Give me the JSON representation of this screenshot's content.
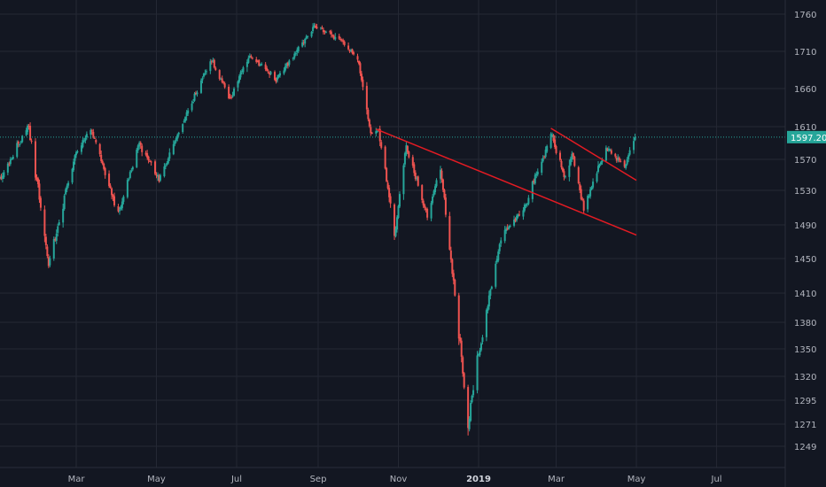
{
  "chart_data": {
    "type": "candlestick",
    "x_ticks": [
      "Mar",
      "May",
      "Jul",
      "Sep",
      "Nov",
      "2019",
      "Mar",
      "May",
      "Jul"
    ],
    "y_ticks": [
      1760,
      1710,
      1660,
      1610,
      1570,
      1530,
      1490,
      1450,
      1410,
      1380,
      1350,
      1320,
      1295,
      1271,
      1249
    ],
    "last_price": "1597.20",
    "colors": {
      "background": "#131722",
      "grid": "#242834",
      "up": "#26a69a",
      "down": "#ef5350",
      "trendline": "#e31b23",
      "price_tag": "#26a69a",
      "axis_text": "#b2b5be"
    },
    "key_points": [
      {
        "date": "2018-01-02",
        "close": 1545
      },
      {
        "date": "2018-01-24",
        "close": 1612
      },
      {
        "date": "2018-02-08",
        "close": 1440
      },
      {
        "date": "2018-02-27",
        "close": 1570
      },
      {
        "date": "2018-03-12",
        "close": 1610
      },
      {
        "date": "2018-04-02",
        "close": 1500
      },
      {
        "date": "2018-04-18",
        "close": 1590
      },
      {
        "date": "2018-05-03",
        "close": 1545
      },
      {
        "date": "2018-06-12",
        "close": 1700
      },
      {
        "date": "2018-06-26",
        "close": 1645
      },
      {
        "date": "2018-07-10",
        "close": 1705
      },
      {
        "date": "2018-07-31",
        "close": 1672
      },
      {
        "date": "2018-08-29",
        "close": 1745
      },
      {
        "date": "2018-09-20",
        "close": 1722
      },
      {
        "date": "2018-10-01",
        "close": 1700
      },
      {
        "date": "2018-10-11",
        "close": 1600
      },
      {
        "date": "2018-10-17",
        "close": 1605
      },
      {
        "date": "2018-10-29",
        "close": 1478
      },
      {
        "date": "2018-11-07",
        "close": 1585
      },
      {
        "date": "2018-11-23",
        "close": 1500
      },
      {
        "date": "2018-12-03",
        "close": 1560
      },
      {
        "date": "2018-12-24",
        "close": 1270
      },
      {
        "date": "2018-12-31",
        "close": 1335
      },
      {
        "date": "2019-01-18",
        "close": 1475
      },
      {
        "date": "2019-02-05",
        "close": 1510
      },
      {
        "date": "2019-02-25",
        "close": 1600
      },
      {
        "date": "2019-03-08",
        "close": 1545
      },
      {
        "date": "2019-03-13",
        "close": 1578
      },
      {
        "date": "2019-03-22",
        "close": 1508
      },
      {
        "date": "2019-04-08",
        "close": 1585
      },
      {
        "date": "2019-04-22",
        "close": 1562
      },
      {
        "date": "2019-04-30",
        "close": 1597.2
      }
    ],
    "trendlines": [
      {
        "start": {
          "date": "2018-10-15",
          "value": 1607
        },
        "end": {
          "date": "2019-05-01",
          "value": 1478
        }
      },
      {
        "start": {
          "date": "2019-02-25",
          "value": 1608
        },
        "end": {
          "date": "2019-05-01",
          "value": 1543
        }
      }
    ]
  }
}
